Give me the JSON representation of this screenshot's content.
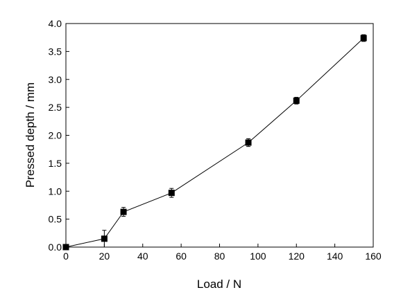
{
  "chart_data": {
    "type": "line",
    "xlabel": "Load / N",
    "ylabel": "Pressed depth / mm",
    "xlim": [
      0,
      160
    ],
    "ylim": [
      0,
      4.0
    ],
    "x_ticks": [
      "0",
      "20",
      "40",
      "60",
      "80",
      "100",
      "120",
      "140",
      "160"
    ],
    "y_ticks": [
      "0.0",
      "0.5",
      "1.0",
      "1.5",
      "2.0",
      "2.5",
      "3.0",
      "3.5",
      "4.0"
    ],
    "grid": false,
    "legend": "none",
    "marker": "square",
    "color": "#000000",
    "series": [
      {
        "x": [
          0,
          20,
          30,
          55,
          95,
          120,
          155
        ],
        "y": [
          0.0,
          0.15,
          0.63,
          0.97,
          1.87,
          2.62,
          3.74
        ],
        "error": [
          0.02,
          0.15,
          0.08,
          0.08,
          0.07,
          0.06,
          0.06
        ]
      }
    ]
  }
}
